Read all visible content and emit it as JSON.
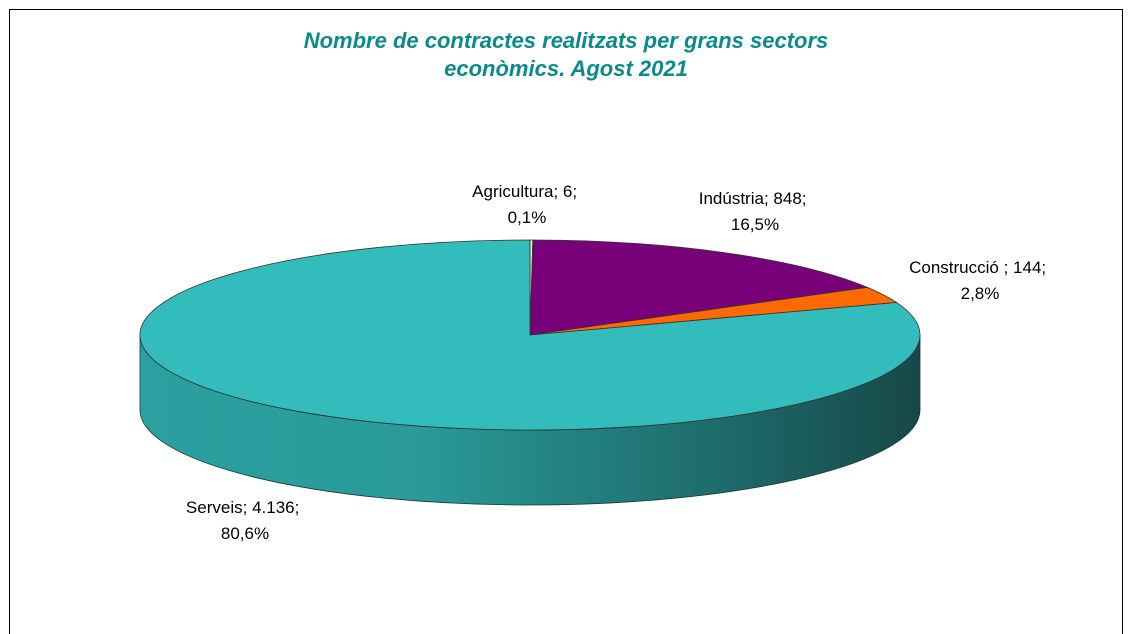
{
  "chart_data": {
    "type": "pie3d",
    "title": [
      "Nombre de contractes realitzats per grans sectors",
      "econòmics. Agost 2021"
    ],
    "categories": [
      "Agricultura",
      "Indústria",
      "Construcció ",
      "Serveis"
    ],
    "values": [
      6,
      848,
      144,
      4136
    ],
    "value_labels": [
      "6",
      "848",
      "144",
      "4.136"
    ],
    "percentages": [
      0.1,
      16.5,
      2.8,
      80.6
    ],
    "percentage_labels": [
      "0,1%",
      "16,5%",
      "2,8%",
      "80,6%"
    ],
    "label_separator": "; ",
    "colors": [
      "#eef3c8",
      "#780078",
      "#ff6a00",
      "#33bcbc"
    ]
  }
}
